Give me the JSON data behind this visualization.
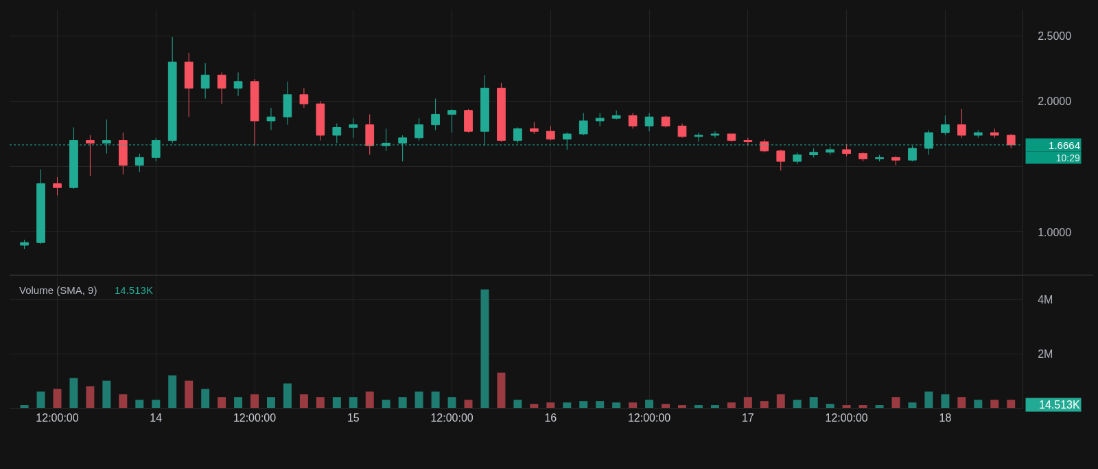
{
  "chart_data": [
    {
      "type": "candlestick",
      "categories": [
        null,
        null,
        null,
        null,
        null,
        null,
        null,
        null,
        null,
        null,
        null,
        null,
        null,
        null,
        null,
        null,
        null,
        null,
        null,
        null,
        null,
        null,
        null,
        null,
        null,
        null,
        null,
        null,
        null,
        null,
        null,
        null,
        null,
        null,
        null,
        null,
        null,
        null,
        null,
        null,
        null,
        null,
        null,
        null,
        null,
        null,
        null,
        null,
        null,
        null,
        null,
        null,
        null,
        null,
        null,
        null,
        null,
        null,
        null,
        null,
        null
      ],
      "ohlc": [
        [
          0.9,
          0.94,
          0.87,
          0.92
        ],
        [
          0.92,
          1.48,
          0.91,
          1.37
        ],
        [
          1.37,
          1.42,
          1.28,
          1.34
        ],
        [
          1.34,
          1.8,
          1.33,
          1.7
        ],
        [
          1.7,
          1.74,
          1.43,
          1.68
        ],
        [
          1.68,
          1.86,
          1.6,
          1.7
        ],
        [
          1.7,
          1.76,
          1.44,
          1.51
        ],
        [
          1.51,
          1.6,
          1.46,
          1.57
        ],
        [
          1.57,
          1.72,
          1.54,
          1.7
        ],
        [
          1.7,
          2.49,
          1.68,
          2.3
        ],
        [
          2.3,
          2.37,
          1.88,
          2.1
        ],
        [
          2.1,
          2.29,
          2.02,
          2.2
        ],
        [
          2.2,
          2.22,
          1.98,
          2.1
        ],
        [
          2.1,
          2.22,
          2.04,
          2.15
        ],
        [
          2.15,
          2.17,
          1.66,
          1.85
        ],
        [
          1.85,
          1.95,
          1.78,
          1.88
        ],
        [
          1.88,
          2.15,
          1.82,
          2.05
        ],
        [
          2.05,
          2.1,
          1.95,
          1.98
        ],
        [
          1.98,
          2.0,
          1.7,
          1.74
        ],
        [
          1.74,
          1.83,
          1.68,
          1.8
        ],
        [
          1.8,
          1.87,
          1.72,
          1.82
        ],
        [
          1.82,
          1.9,
          1.59,
          1.66
        ],
        [
          1.66,
          1.79,
          1.62,
          1.68
        ],
        [
          1.68,
          1.74,
          1.54,
          1.72
        ],
        [
          1.72,
          1.87,
          1.7,
          1.82
        ],
        [
          1.82,
          2.02,
          1.78,
          1.9
        ],
        [
          1.9,
          1.94,
          1.76,
          1.93
        ],
        [
          1.93,
          1.94,
          1.76,
          1.77
        ],
        [
          1.77,
          2.2,
          1.66,
          2.1
        ],
        [
          2.1,
          2.14,
          1.69,
          1.7
        ],
        [
          1.7,
          1.8,
          1.68,
          1.79
        ],
        [
          1.79,
          1.84,
          1.75,
          1.77
        ],
        [
          1.77,
          1.81,
          1.7,
          1.71
        ],
        [
          1.71,
          1.76,
          1.63,
          1.75
        ],
        [
          1.75,
          1.91,
          1.74,
          1.85
        ],
        [
          1.85,
          1.91,
          1.81,
          1.87
        ],
        [
          1.87,
          1.93,
          1.86,
          1.89
        ],
        [
          1.89,
          1.91,
          1.79,
          1.81
        ],
        [
          1.81,
          1.91,
          1.77,
          1.88
        ],
        [
          1.88,
          1.89,
          1.8,
          1.81
        ],
        [
          1.81,
          1.83,
          1.72,
          1.73
        ],
        [
          1.73,
          1.76,
          1.69,
          1.74
        ],
        [
          1.74,
          1.77,
          1.72,
          1.75
        ],
        [
          1.75,
          1.75,
          1.69,
          1.7
        ],
        [
          1.7,
          1.72,
          1.66,
          1.69
        ],
        [
          1.69,
          1.71,
          1.61,
          1.62
        ],
        [
          1.62,
          1.63,
          1.47,
          1.54
        ],
        [
          1.54,
          1.61,
          1.52,
          1.59
        ],
        [
          1.59,
          1.64,
          1.57,
          1.61
        ],
        [
          1.61,
          1.65,
          1.59,
          1.63
        ],
        [
          1.63,
          1.67,
          1.58,
          1.6
        ],
        [
          1.6,
          1.61,
          1.54,
          1.56
        ],
        [
          1.56,
          1.59,
          1.54,
          1.57
        ],
        [
          1.57,
          1.58,
          1.51,
          1.55
        ],
        [
          1.55,
          1.66,
          1.54,
          1.64
        ],
        [
          1.64,
          1.78,
          1.59,
          1.76
        ],
        [
          1.76,
          1.89,
          1.74,
          1.82
        ],
        [
          1.82,
          1.94,
          1.72,
          1.74
        ],
        [
          1.74,
          1.78,
          1.72,
          1.76
        ],
        [
          1.76,
          1.79,
          1.72,
          1.74
        ],
        [
          1.74,
          1.75,
          1.64,
          1.6664
        ]
      ],
      "colors": [
        "#22ab94",
        "#22ab94",
        "#f7525f",
        "#22ab94",
        "#f7525f",
        "#22ab94",
        "#f7525f",
        "#22ab94",
        "#22ab94",
        "#22ab94",
        "#f7525f",
        "#22ab94",
        "#f7525f",
        "#22ab94",
        "#f7525f",
        "#22ab94",
        "#22ab94",
        "#f7525f",
        "#f7525f",
        "#22ab94",
        "#22ab94",
        "#f7525f",
        "#22ab94",
        "#22ab94",
        "#22ab94",
        "#22ab94",
        "#22ab94",
        "#f7525f",
        "#22ab94",
        "#f7525f",
        "#22ab94",
        "#f7525f",
        "#f7525f",
        "#22ab94",
        "#22ab94",
        "#22ab94",
        "#22ab94",
        "#f7525f",
        "#22ab94",
        "#f7525f",
        "#f7525f",
        "#22ab94",
        "#22ab94",
        "#f7525f",
        "#f7525f",
        "#f7525f",
        "#f7525f",
        "#22ab94",
        "#22ab94",
        "#22ab94",
        "#f7525f",
        "#f7525f",
        "#22ab94",
        "#f7525f",
        "#22ab94",
        "#22ab94",
        "#22ab94",
        "#f7525f",
        "#22ab94",
        "#f7525f",
        "#f7525f"
      ],
      "ylim": [
        0.67,
        2.7
      ],
      "yticks": [
        {
          "value": 1,
          "label": "1.0000"
        },
        {
          "value": 1.5,
          "label": null
        },
        {
          "value": 2,
          "label": "2.0000"
        },
        {
          "value": 2.5,
          "label": "2.5000"
        }
      ],
      "grid": true,
      "tick_labels": "y",
      "ref_lines": [
        {
          "axis": "y",
          "value": 1.6664,
          "label": "1.6664",
          "color": "#22ab94",
          "line_style": "dotted"
        }
      ],
      "annotations": [
        "10:29"
      ]
    },
    {
      "type": "bar",
      "title": "Volume (SMA, 9)",
      "subtitle": "14.513K",
      "categories": [
        null,
        null,
        "12:00:00",
        null,
        null,
        null,
        null,
        null,
        "14",
        null,
        null,
        null,
        null,
        null,
        "12:00:00",
        null,
        null,
        null,
        null,
        null,
        "15",
        null,
        null,
        null,
        null,
        null,
        "12:00:00",
        null,
        null,
        null,
        null,
        null,
        "16",
        null,
        null,
        null,
        null,
        null,
        "12:00:00",
        null,
        null,
        null,
        null,
        null,
        "17",
        null,
        null,
        null,
        null,
        null,
        "12:00:00",
        null,
        null,
        null,
        null,
        null,
        "18",
        null,
        null,
        null,
        null
      ],
      "values": [
        0.1,
        0.6,
        0.7,
        1.1,
        0.8,
        1.0,
        0.5,
        0.3,
        0.3,
        1.2,
        1.0,
        0.7,
        0.4,
        0.4,
        0.5,
        0.4,
        0.9,
        0.5,
        0.4,
        0.4,
        0.4,
        0.6,
        0.3,
        0.4,
        0.6,
        0.6,
        0.4,
        0.3,
        4.37,
        1.3,
        0.3,
        0.15,
        0.2,
        0.2,
        0.25,
        0.25,
        0.2,
        0.2,
        0.3,
        0.15,
        0.1,
        0.1,
        0.1,
        0.2,
        0.4,
        0.25,
        0.5,
        0.3,
        0.4,
        0.15,
        0.1,
        0.1,
        0.1,
        0.4,
        0.2,
        0.6,
        0.5,
        0.4,
        0.3,
        0.3,
        0.3
      ],
      "colors": [
        "#1e7d70",
        "#1e7d70",
        "#9a3b42",
        "#1e7d70",
        "#9a3b42",
        "#1e7d70",
        "#9a3b42",
        "#1e7d70",
        "#1e7d70",
        "#1e7d70",
        "#9a3b42",
        "#1e7d70",
        "#9a3b42",
        "#1e7d70",
        "#9a3b42",
        "#1e7d70",
        "#1e7d70",
        "#9a3b42",
        "#9a3b42",
        "#1e7d70",
        "#1e7d70",
        "#9a3b42",
        "#1e7d70",
        "#1e7d70",
        "#1e7d70",
        "#1e7d70",
        "#1e7d70",
        "#9a3b42",
        "#1e7d70",
        "#9a3b42",
        "#1e7d70",
        "#9a3b42",
        "#9a3b42",
        "#1e7d70",
        "#1e7d70",
        "#1e7d70",
        "#1e7d70",
        "#9a3b42",
        "#1e7d70",
        "#9a3b42",
        "#9a3b42",
        "#1e7d70",
        "#1e7d70",
        "#9a3b42",
        "#9a3b42",
        "#9a3b42",
        "#9a3b42",
        "#1e7d70",
        "#1e7d70",
        "#1e7d70",
        "#9a3b42",
        "#9a3b42",
        "#1e7d70",
        "#9a3b42",
        "#1e7d70",
        "#1e7d70",
        "#1e7d70",
        "#9a3b42",
        "#1e7d70",
        "#9a3b42",
        "#9a3b42"
      ],
      "ylim": [
        0,
        4.89
      ],
      "yticks": [
        {
          "value": 2,
          "label": "2M"
        },
        {
          "value": 4,
          "label": "4M"
        }
      ],
      "grid": true,
      "annotations": [
        "14.513K"
      ]
    }
  ]
}
